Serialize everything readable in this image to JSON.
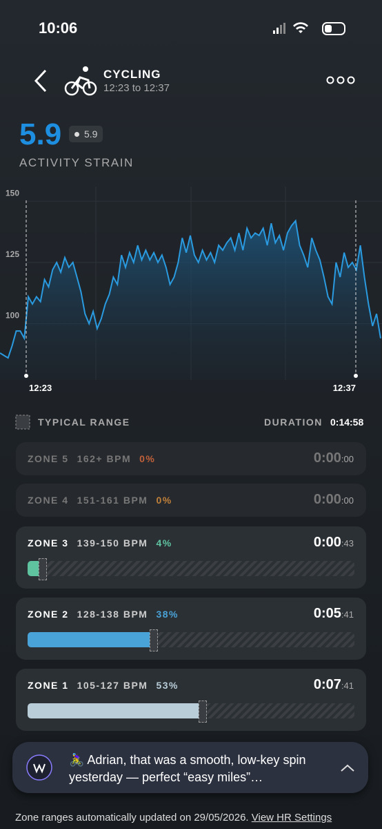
{
  "status": {
    "time": "10:06"
  },
  "header": {
    "title": "CYCLING",
    "subtitle": "12:23 to 12:37"
  },
  "strain": {
    "value": "5.9",
    "badge": "5.9",
    "label": "ACTIVITY STRAIN"
  },
  "hr_chart": {
    "type": "line",
    "color": "#2a9be0",
    "ylim": [
      77,
      156
    ],
    "yticks": [
      100,
      125,
      150
    ],
    "start_label": "12:23",
    "end_label": "12:37",
    "values": [
      88,
      87,
      86,
      91,
      97,
      97,
      94,
      111,
      108,
      111,
      109,
      118,
      115,
      122,
      125,
      121,
      127,
      123,
      125,
      119,
      113,
      104,
      100,
      105,
      98,
      102,
      108,
      112,
      119,
      116,
      128,
      123,
      129,
      125,
      132,
      126,
      130,
      126,
      129,
      125,
      128,
      123,
      116,
      119,
      125,
      135,
      129,
      136,
      128,
      125,
      130,
      126,
      129,
      125,
      132,
      130,
      133,
      135,
      130,
      137,
      130,
      139,
      135,
      137,
      136,
      139,
      132,
      141,
      133,
      136,
      130,
      137,
      140,
      142,
      132,
      128,
      123,
      135,
      130,
      126,
      119,
      111,
      108,
      125,
      119,
      129,
      123,
      125,
      122,
      132,
      119,
      108,
      99,
      104,
      94
    ]
  },
  "legend": {
    "range": "TYPICAL RANGE",
    "duration_label": "DURATION",
    "duration": "0:14:58"
  },
  "zones": [
    {
      "name": "ZONE 5",
      "bpm": "162+ BPM",
      "percent": {
        "value": 0,
        "label": "0%"
      },
      "time": "0:00",
      "time_small": ":00"
    },
    {
      "name": "ZONE 4",
      "bpm": "151-161 BPM",
      "percent": {
        "value": 0,
        "label": "0%"
      },
      "time": "0:00",
      "time_small": ":00"
    },
    {
      "name": "ZONE 3",
      "bpm": "139-150 BPM",
      "percent": {
        "value": 4,
        "label": "4%"
      },
      "time": "0:00",
      "time_small": ":43"
    },
    {
      "name": "ZONE 2",
      "bpm": "128-138 BPM",
      "percent": {
        "value": 38,
        "label": "38%"
      },
      "time": "0:05",
      "time_small": ":41"
    },
    {
      "name": "ZONE 1",
      "bpm": "105-127 BPM",
      "percent": {
        "value": 53,
        "label": "53%"
      },
      "time": "0:07",
      "time_small": ":41"
    }
  ],
  "notification": {
    "text": "🚴‍♀️ Adrian, that was a smooth, low-key spin yesterday — perfect “easy miles”…"
  },
  "footer": {
    "text": "Zone ranges automatically updated on 29/05/2026.",
    "link": "View HR Settings"
  }
}
